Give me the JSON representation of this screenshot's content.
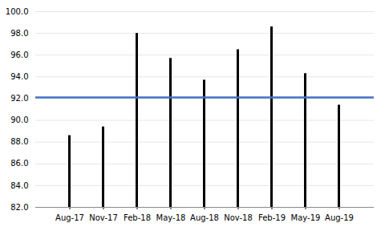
{
  "chart_data": {
    "type": "bar",
    "categories": [
      "Aug-17",
      "Nov-17",
      "Feb-18",
      "May-18",
      "Aug-18",
      "Nov-18",
      "Feb-19",
      "May-19",
      "Aug-19"
    ],
    "values": [
      88.6,
      89.4,
      98.0,
      95.7,
      93.7,
      96.5,
      98.6,
      94.3,
      91.4
    ],
    "color": "#000000",
    "hlines": [
      {
        "y": 92.1,
        "color": "#4472C4"
      }
    ],
    "ylim": [
      82.0,
      100.0
    ],
    "yticks": [
      {
        "value": 82,
        "label": "82.0"
      },
      {
        "value": 84,
        "label": "84.0"
      },
      {
        "value": 86,
        "label": "86.0"
      },
      {
        "value": 88,
        "label": "88.0"
      },
      {
        "value": 90,
        "label": "90.0"
      },
      {
        "value": 92,
        "label": "92.0"
      },
      {
        "value": 94,
        "label": "94.0"
      },
      {
        "value": 96,
        "label": "96.0"
      },
      {
        "value": 98,
        "label": "98.0"
      },
      {
        "value": 100,
        "label": "100.0"
      }
    ],
    "grid": true
  }
}
